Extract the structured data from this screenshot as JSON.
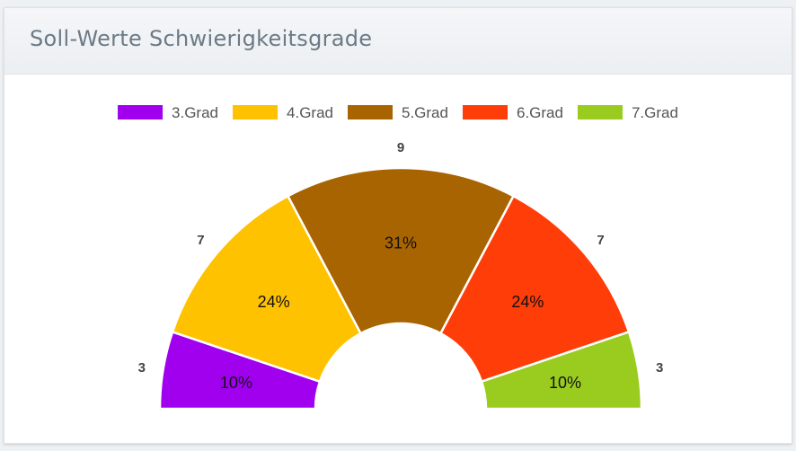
{
  "panel": {
    "title": "Soll-Werte Schwierigkeitsgrade"
  },
  "chart_data": {
    "type": "pie",
    "variant": "semi-donut",
    "title": "",
    "legend_position": "top-center",
    "categories": [
      "3.Grad",
      "4.Grad",
      "5.Grad",
      "6.Grad",
      "7.Grad"
    ],
    "values": [
      3,
      7,
      9,
      7,
      3
    ],
    "percent_labels": [
      "10%",
      "24%",
      "31%",
      "24%",
      "10%"
    ],
    "colors": [
      "#a000ee",
      "#ffc200",
      "#a86400",
      "#ff3d09",
      "#99cc1f"
    ]
  }
}
